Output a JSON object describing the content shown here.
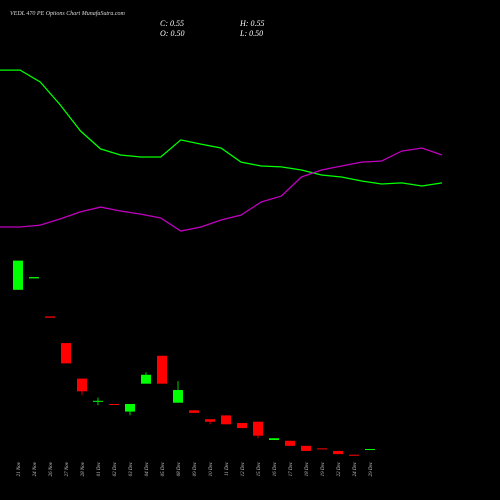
{
  "chart_data": {
    "type": "candlestick",
    "title": "VEDL 470 PE Options Chart MunafaSutra.com",
    "summary": {
      "close": "C: 0.55",
      "high": "H: 0.55",
      "open": "O: 0.50",
      "low": "L: 0.50"
    },
    "categories": [
      "21 Nov",
      "24 Nov",
      "26 Nov",
      "27 Nov",
      "28 Nov",
      "01 Dec",
      "02 Dec",
      "03 Dec",
      "04 Dec",
      "05 Dec",
      "08 Dec",
      "09 Dec",
      "10 Dec",
      "11 Dec",
      "12 Dec",
      "15 Dec",
      "16 Dec",
      "17 Dec",
      "18 Dec",
      "19 Dec",
      "22 Dec",
      "24 Dec",
      "29 Dec"
    ],
    "open": [
      13.1,
      14.0,
      11.0,
      8.9,
      6.1,
      4.3,
      4.1,
      3.5,
      5.7,
      7.9,
      4.2,
      3.6,
      2.9,
      3.2,
      2.6,
      2.7,
      1.26,
      1.2,
      0.8,
      0.6,
      0.4,
      0.1,
      0.5
    ],
    "high": [
      15.4,
      14.1,
      11.0,
      8.9,
      6.1,
      4.6,
      4.1,
      4.1,
      6.6,
      7.9,
      5.9,
      3.6,
      2.9,
      3.2,
      2.6,
      2.7,
      1.4,
      1.2,
      0.8,
      0.6,
      0.4,
      0.1,
      0.55
    ],
    "low": [
      13.1,
      14.0,
      10.9,
      7.3,
      4.8,
      4.0,
      4.05,
      3.2,
      5.7,
      5.7,
      4.2,
      3.4,
      2.5,
      2.5,
      2.2,
      1.4,
      1.26,
      0.8,
      0.4,
      0.55,
      0.15,
      0.08,
      0.5
    ],
    "close": [
      15.4,
      14.1,
      10.9,
      7.3,
      5.1,
      4.35,
      4.05,
      4.1,
      6.4,
      5.7,
      5.2,
      3.4,
      2.7,
      2.5,
      2.2,
      1.6,
      1.4,
      0.8,
      0.4,
      0.55,
      0.15,
      0.08,
      0.55
    ],
    "up_color": "#00ff00",
    "down_color": "#ff0000",
    "ylim": [
      0,
      16
    ],
    "lines": [
      {
        "color": "#00ff00",
        "values": [
          94.4,
          94.4,
          87.8,
          75,
          60.6,
          50.6,
          47.2,
          46.1,
          46.1,
          55.6,
          53.3,
          51.1,
          43.3,
          41.1,
          40.6,
          38.9,
          36.1,
          35,
          32.8,
          31.1,
          31.7,
          30,
          31.7
        ]
      },
      {
        "color": "#c000c0",
        "values": [
          7.2,
          7.2,
          8.3,
          11.7,
          15.6,
          18.3,
          16.1,
          14.4,
          12.2,
          5,
          7.2,
          11.1,
          13.9,
          21.1,
          24.4,
          35,
          38.9,
          41.1,
          43.3,
          43.9,
          49.4,
          51.1,
          47.2
        ]
      }
    ],
    "y2lim": [
      0,
      100
    ]
  }
}
